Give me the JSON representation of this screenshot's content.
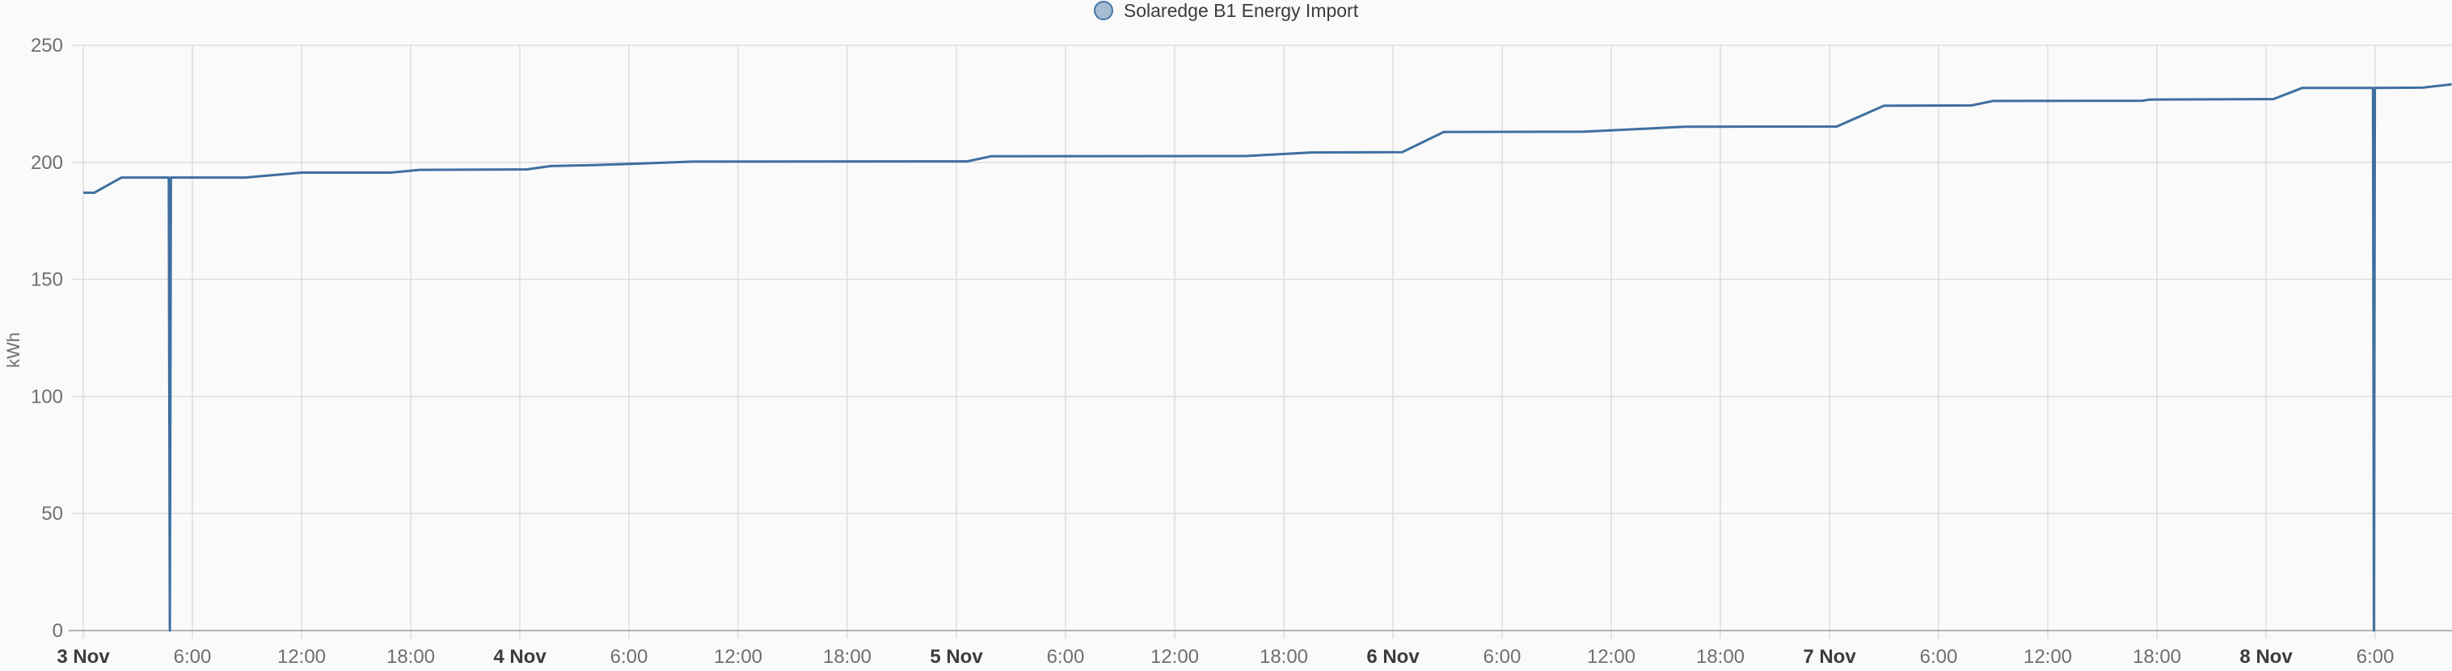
{
  "legend": {
    "label": "Solaredge B1 Energy Import",
    "marker": "circle-icon"
  },
  "colors": {
    "background": "#fafafa",
    "line": "#3f6f9f",
    "legend_fill": "#a5bcd3",
    "legend_border": "#4377a7",
    "legend_text": "#3c3c3c",
    "grid": "#dedede",
    "axis": "#ababab",
    "tick_label": "#6f6f6f",
    "day_label": "#3c3c3c"
  },
  "chart_data": {
    "type": "line",
    "title": "Solaredge B1 Energy Import",
    "xlabel": "",
    "ylabel": "kWh",
    "ylim": [
      0,
      250
    ],
    "y_ticks": [
      0,
      50,
      100,
      150,
      200,
      250
    ],
    "grid": true,
    "legend_position": "top-center",
    "x_unit": "hours-since-3-Nov-00:00",
    "x_range_hours": [
      0,
      130.2
    ],
    "x_ticks": [
      {
        "h": 0,
        "label": "3 Nov",
        "bold": true
      },
      {
        "h": 6,
        "label": "6:00",
        "bold": false
      },
      {
        "h": 12,
        "label": "12:00",
        "bold": false
      },
      {
        "h": 18,
        "label": "18:00",
        "bold": false
      },
      {
        "h": 24,
        "label": "4 Nov",
        "bold": true
      },
      {
        "h": 30,
        "label": "6:00",
        "bold": false
      },
      {
        "h": 36,
        "label": "12:00",
        "bold": false
      },
      {
        "h": 42,
        "label": "18:00",
        "bold": false
      },
      {
        "h": 48,
        "label": "5 Nov",
        "bold": true
      },
      {
        "h": 54,
        "label": "6:00",
        "bold": false
      },
      {
        "h": 60,
        "label": "12:00",
        "bold": false
      },
      {
        "h": 66,
        "label": "18:00",
        "bold": false
      },
      {
        "h": 72,
        "label": "6 Nov",
        "bold": true
      },
      {
        "h": 78,
        "label": "6:00",
        "bold": false
      },
      {
        "h": 84,
        "label": "12:00",
        "bold": false
      },
      {
        "h": 90,
        "label": "18:00",
        "bold": false
      },
      {
        "h": 96,
        "label": "7 Nov",
        "bold": true
      },
      {
        "h": 102,
        "label": "6:00",
        "bold": false
      },
      {
        "h": 108,
        "label": "12:00",
        "bold": false
      },
      {
        "h": 114,
        "label": "18:00",
        "bold": false
      },
      {
        "h": 120,
        "label": "8 Nov",
        "bold": true
      },
      {
        "h": 126,
        "label": "6:00",
        "bold": false
      }
    ],
    "series": [
      {
        "name": "Solaredge B1 Energy Import",
        "points": [
          [
            0,
            187
          ],
          [
            0.6,
            187
          ],
          [
            2.1,
            193.5
          ],
          [
            4.7,
            193.5
          ],
          [
            4.76,
            0
          ],
          [
            4.82,
            193.5
          ],
          [
            8.9,
            193.5
          ],
          [
            12,
            195.6
          ],
          [
            16.9,
            195.6
          ],
          [
            18.5,
            196.8
          ],
          [
            24.4,
            197.0
          ],
          [
            25.7,
            198.4
          ],
          [
            28,
            198.8
          ],
          [
            31,
            199.6
          ],
          [
            33.5,
            200.3
          ],
          [
            48.6,
            200.4
          ],
          [
            49.9,
            202.6
          ],
          [
            63.9,
            202.7
          ],
          [
            67.5,
            204.2
          ],
          [
            72.5,
            204.3
          ],
          [
            74.8,
            213.0
          ],
          [
            82.5,
            213.1
          ],
          [
            88,
            215.2
          ],
          [
            96.4,
            215.3
          ],
          [
            99,
            224.2
          ],
          [
            103.8,
            224.3
          ],
          [
            105,
            226.2
          ],
          [
            113.2,
            226.3
          ],
          [
            113.6,
            226.8
          ],
          [
            120.4,
            227.0
          ],
          [
            122,
            231.8
          ],
          [
            125.88,
            231.8
          ],
          [
            125.93,
            0
          ],
          [
            125.98,
            231.8
          ],
          [
            128.6,
            231.9
          ],
          [
            130.2,
            233.3
          ]
        ]
      }
    ],
    "annotations": [
      "vertical drop to 0 at 3 Nov ~04:45",
      "vertical drop to 0 at 8 Nov ~06:00"
    ]
  }
}
